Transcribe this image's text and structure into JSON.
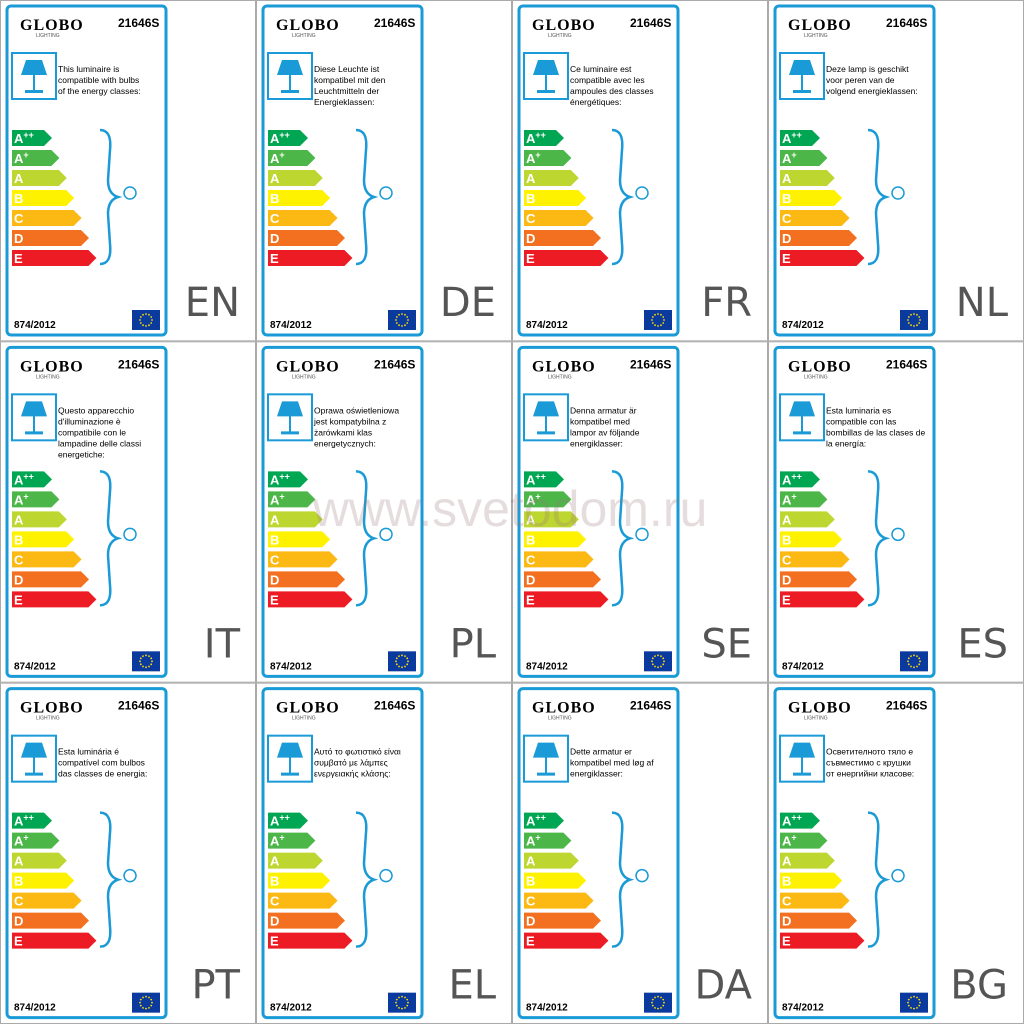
{
  "brand": "GLOBO",
  "brand_sub": "LIGHTING",
  "model": "21646S",
  "regulation": "874/2012",
  "watermark": "www.svetodom.ru",
  "classes": [
    {
      "letter": "A",
      "sup": "++",
      "color": "#00a651"
    },
    {
      "letter": "A",
      "sup": "+",
      "color": "#4cb748"
    },
    {
      "letter": "A",
      "color": "#bed630"
    },
    {
      "letter": "B",
      "color": "#fff200"
    },
    {
      "letter": "C",
      "color": "#fdb913"
    },
    {
      "letter": "D",
      "color": "#f37021"
    },
    {
      "letter": "E",
      "color": "#ed1c24"
    }
  ],
  "labels": [
    {
      "lang": "EN",
      "lines": [
        "This luminaire is",
        "compatible with bulbs",
        "of the energy classes:"
      ]
    },
    {
      "lang": "DE",
      "lines": [
        "Diese Leuchte ist",
        "kompatibel mit den",
        "Leuchtmitteln der",
        "Energieklassen:"
      ]
    },
    {
      "lang": "FR",
      "lines": [
        "Ce luminaire est",
        "compatible avec les",
        "ampoules des classes",
        "énergétiques:"
      ]
    },
    {
      "lang": "NL",
      "lines": [
        "Deze lamp is geschikt",
        "voor peren van de",
        "volgend energieklassen:"
      ]
    },
    {
      "lang": "IT",
      "lines": [
        "Questo apparecchio",
        "d'illuminazione è",
        "compatibile con le",
        "lampadine delle classi",
        "energetiche:"
      ]
    },
    {
      "lang": "PL",
      "lines": [
        "Oprawa oświetleniowa",
        "jest kompatybilna z",
        "żarówkami klas",
        "energetycznych:"
      ]
    },
    {
      "lang": "SE",
      "lines": [
        "Denna armatur är",
        "kompatibel med",
        "lampor av följande",
        "energiklasser:"
      ]
    },
    {
      "lang": "ES",
      "lines": [
        "Esta luminaria es",
        "compatible con las",
        "bombillas de las clases de",
        "la energía:"
      ]
    },
    {
      "lang": "PT",
      "lines": [
        "Esta luminária é",
        "compatível com bulbos",
        "das classes de energia:"
      ]
    },
    {
      "lang": "EL",
      "lines": [
        "Αυτό το φωτιστικό είναι",
        "συμβατό με λάμπες",
        "ενεργειακής κλάσης:"
      ]
    },
    {
      "lang": "DA",
      "lines": [
        "Dette armatur er",
        "kompatibel med løg af",
        "energiklasser:"
      ]
    },
    {
      "lang": "BG",
      "lines": [
        "Осветителното тяло е",
        "съвместимо с крушки",
        "от енергийни класове:"
      ]
    }
  ]
}
